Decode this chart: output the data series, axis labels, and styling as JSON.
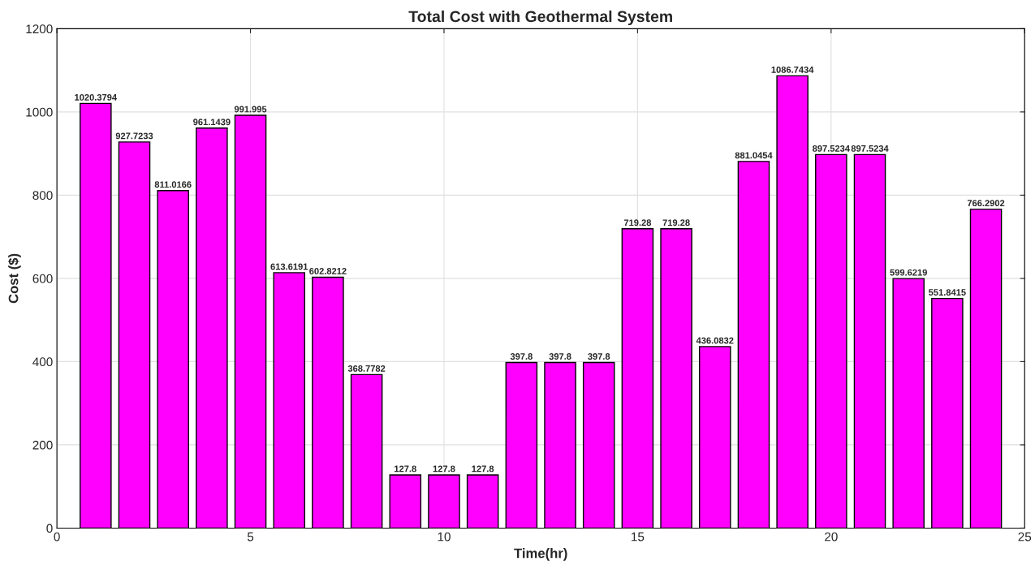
{
  "chart_data": {
    "type": "bar",
    "title": "Total Cost with Geothermal System",
    "xlabel": "Time(hr)",
    "ylabel": "Cost ($)",
    "x": [
      1,
      2,
      3,
      4,
      5,
      6,
      7,
      8,
      9,
      10,
      11,
      12,
      13,
      14,
      15,
      16,
      17,
      18,
      19,
      20,
      21,
      22,
      23,
      24
    ],
    "values": [
      1020.3794,
      927.7233,
      811.0166,
      961.1439,
      991.995,
      613.6191,
      602.8212,
      368.7782,
      127.8,
      127.8,
      127.8,
      397.8,
      397.8,
      397.8,
      719.28,
      719.28,
      436.0832,
      881.0454,
      1086.7434,
      897.5234,
      897.5234,
      599.6219,
      551.8415,
      766.2902
    ],
    "color": "#ff00ff",
    "data_labels": true,
    "xlim": [
      0,
      25
    ],
    "xticks": [
      0,
      5,
      10,
      15,
      20,
      25
    ],
    "ylim": [
      0,
      1200
    ],
    "yticks": [
      0,
      200,
      400,
      600,
      800,
      1000,
      1200
    ],
    "grid": true
  }
}
